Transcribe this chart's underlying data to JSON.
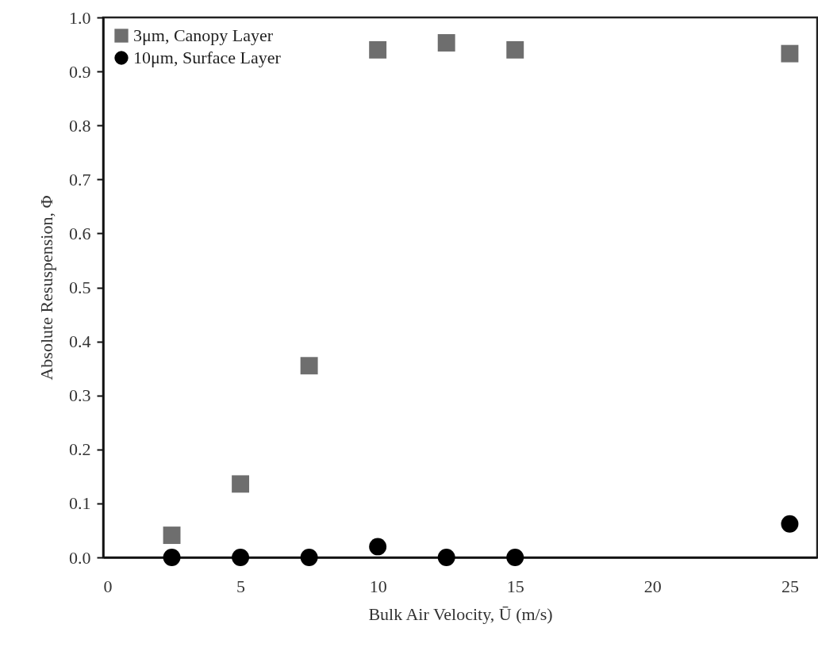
{
  "chart_data": {
    "type": "scatter",
    "xlabel": "Bulk Air Velocity, Ū (m/s)",
    "ylabel": "Absolute Resuspension, Φ",
    "x": [
      2.5,
      5,
      7.5,
      10,
      12.5,
      15,
      25
    ],
    "series": [
      {
        "name": "3μm, Canopy Layer",
        "color": "#6e6e6e",
        "marker": "square",
        "values": [
          0.041,
          0.136,
          0.355,
          0.94,
          0.953,
          0.94,
          0.933
        ]
      },
      {
        "name": "10μm, Surface Layer",
        "color": "#000000",
        "marker": "circle",
        "values": [
          0,
          0,
          0,
          0.02,
          0,
          0,
          0.062
        ]
      }
    ],
    "xlim": [
      0,
      26
    ],
    "xticks": [
      0,
      5,
      10,
      15,
      20,
      25
    ],
    "ylim": [
      0,
      1
    ],
    "yticks": [
      {
        "value": 0,
        "label": "0.0"
      },
      0.1,
      0.2,
      0.3,
      0.4,
      0.5,
      0.6,
      0.7,
      0.8,
      0.9,
      {
        "value": 1,
        "label": "1.0"
      }
    ],
    "legend": "top left"
  }
}
